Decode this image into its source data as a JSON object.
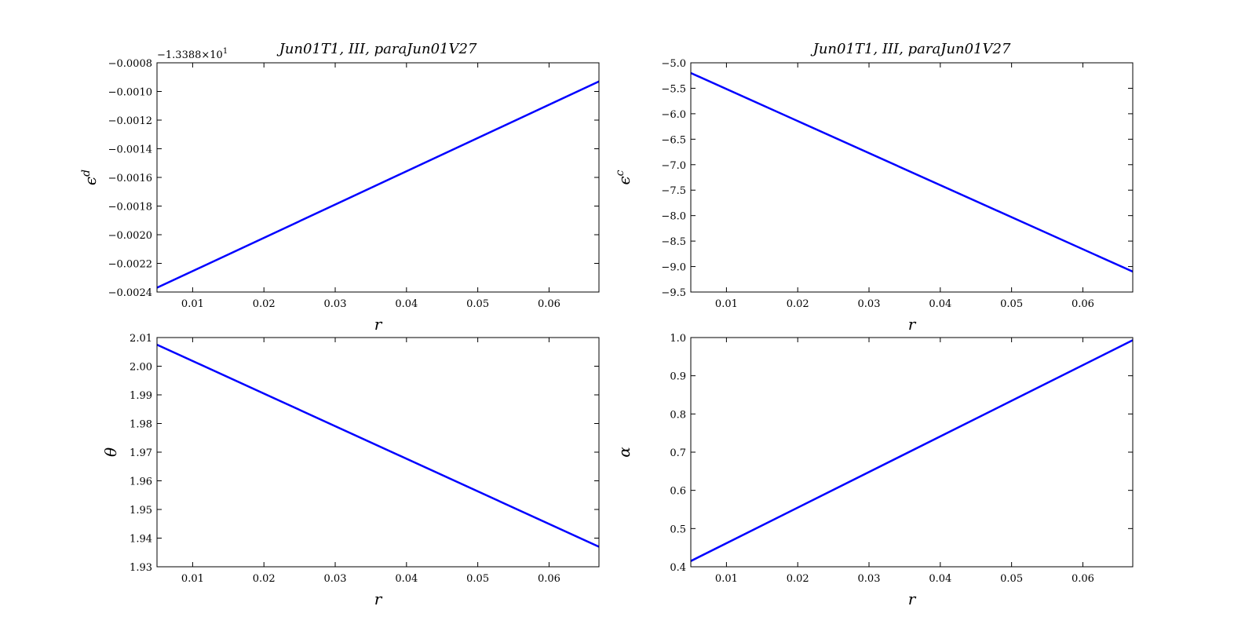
{
  "colors": {
    "line": "#0000ff",
    "axes": "#000000",
    "background": "#ffffff"
  },
  "chart_data": [
    {
      "type": "line",
      "title": "Jun01T1, III, paraJun01V27",
      "xlabel": "r",
      "ylabel": "ϵ",
      "ylabel_sup": "d",
      "offset_text": "−1.3388×10",
      "offset_exp": "1",
      "xlim": [
        0.005,
        0.067
      ],
      "ylim": [
        -0.0024,
        -0.0008
      ],
      "xticks": [
        0.01,
        0.02,
        0.03,
        0.04,
        0.05,
        0.06
      ],
      "xtick_labels": [
        "0.01",
        "0.02",
        "0.03",
        "0.04",
        "0.05",
        "0.06"
      ],
      "yticks": [
        -0.0024,
        -0.0022,
        -0.002,
        -0.0018,
        -0.0016,
        -0.0014,
        -0.0012,
        -0.001,
        -0.0008
      ],
      "ytick_labels": [
        "−0.0024",
        "−0.0022",
        "−0.0020",
        "−0.0018",
        "−0.0016",
        "−0.0014",
        "−0.0012",
        "−0.0010",
        "−0.0008"
      ],
      "grid": false,
      "series": [
        {
          "x": [
            0.005,
            0.067
          ],
          "y": [
            -0.00237,
            -0.00093
          ]
        }
      ]
    },
    {
      "type": "line",
      "title": "Jun01T1, III, paraJun01V27",
      "xlabel": "r",
      "ylabel": "ϵ",
      "ylabel_sup": "c",
      "offset_text": "",
      "offset_exp": "",
      "xlim": [
        0.005,
        0.067
      ],
      "ylim": [
        -9.5,
        -5.0
      ],
      "xticks": [
        0.01,
        0.02,
        0.03,
        0.04,
        0.05,
        0.06
      ],
      "xtick_labels": [
        "0.01",
        "0.02",
        "0.03",
        "0.04",
        "0.05",
        "0.06"
      ],
      "yticks": [
        -9.5,
        -9.0,
        -8.5,
        -8.0,
        -7.5,
        -7.0,
        -6.5,
        -6.0,
        -5.5,
        -5.0
      ],
      "ytick_labels": [
        "−9.5",
        "−9.0",
        "−8.5",
        "−8.0",
        "−7.5",
        "−7.0",
        "−6.5",
        "−6.0",
        "−5.5",
        "−5.0"
      ],
      "grid": false,
      "series": [
        {
          "x": [
            0.005,
            0.067
          ],
          "y": [
            -5.2,
            -9.1
          ]
        }
      ]
    },
    {
      "type": "line",
      "title": "",
      "xlabel": "r",
      "ylabel": "θ",
      "ylabel_sup": "",
      "offset_text": "",
      "offset_exp": "",
      "xlim": [
        0.005,
        0.067
      ],
      "ylim": [
        1.93,
        2.01
      ],
      "xticks": [
        0.01,
        0.02,
        0.03,
        0.04,
        0.05,
        0.06
      ],
      "xtick_labels": [
        "0.01",
        "0.02",
        "0.03",
        "0.04",
        "0.05",
        "0.06"
      ],
      "yticks": [
        1.93,
        1.94,
        1.95,
        1.96,
        1.97,
        1.98,
        1.99,
        2.0,
        2.01
      ],
      "ytick_labels": [
        "1.93",
        "1.94",
        "1.95",
        "1.96",
        "1.97",
        "1.98",
        "1.99",
        "2.00",
        "2.01"
      ],
      "grid": false,
      "series": [
        {
          "x": [
            0.005,
            0.067
          ],
          "y": [
            2.0075,
            1.937
          ]
        }
      ]
    },
    {
      "type": "line",
      "title": "",
      "xlabel": "r",
      "ylabel": "α",
      "ylabel_sup": "",
      "offset_text": "",
      "offset_exp": "",
      "xlim": [
        0.005,
        0.067
      ],
      "ylim": [
        0.4,
        1.0
      ],
      "xticks": [
        0.01,
        0.02,
        0.03,
        0.04,
        0.05,
        0.06
      ],
      "xtick_labels": [
        "0.01",
        "0.02",
        "0.03",
        "0.04",
        "0.05",
        "0.06"
      ],
      "yticks": [
        0.4,
        0.5,
        0.6,
        0.7,
        0.8,
        0.9,
        1.0
      ],
      "ytick_labels": [
        "0.4",
        "0.5",
        "0.6",
        "0.7",
        "0.8",
        "0.9",
        "1.0"
      ],
      "grid": false,
      "series": [
        {
          "x": [
            0.005,
            0.067
          ],
          "y": [
            0.415,
            0.993
          ]
        }
      ]
    }
  ]
}
